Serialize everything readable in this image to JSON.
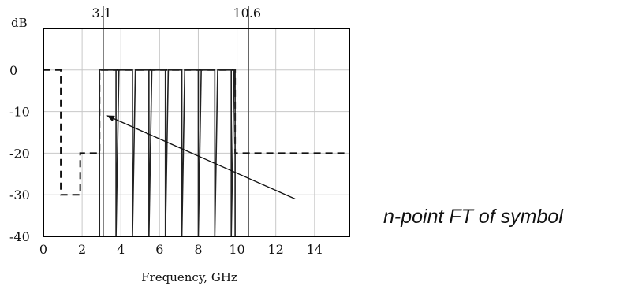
{
  "chart_data": {
    "type": "line",
    "title": "",
    "xlabel": "Frequency, GHz",
    "ylabel": "dB",
    "xlim": [
      0,
      15.8
    ],
    "ylim": [
      -40,
      10
    ],
    "xticks": [
      0,
      2,
      4,
      6,
      8,
      10,
      12,
      14
    ],
    "yticks": [
      0,
      -10,
      -20,
      -30,
      -40
    ],
    "grid": true,
    "markers": [
      {
        "x": 3.1,
        "label": "3.1"
      },
      {
        "x": 10.6,
        "label": "10.6"
      }
    ],
    "annotation": {
      "text": "n-point FT of symbol",
      "arrow_from": [
        13.0,
        -31.0
      ],
      "arrow_to": [
        3.3,
        -11.0
      ]
    },
    "series": [
      {
        "style": "dashed",
        "x": [
          0.0,
          0.9,
          0.9,
          0.9,
          1.9,
          1.9,
          2.9,
          2.9,
          9.9,
          9.9,
          15.8
        ],
        "y": [
          0,
          0,
          0,
          -30,
          -30,
          -20,
          -20,
          0,
          0,
          -20,
          -20
        ]
      },
      {
        "style": "solid",
        "x": [
          2.9,
          2.9,
          3.05,
          3.75,
          3.75,
          3.75,
          3.9,
          4.6,
          4.6,
          4.6,
          4.75,
          5.45,
          5.45,
          5.45,
          5.6,
          6.3,
          6.3,
          6.3,
          6.45,
          7.15,
          7.15,
          7.15,
          7.3,
          8.0,
          8.0,
          8.0,
          8.15,
          8.85,
          8.85,
          8.85,
          9.0,
          9.7,
          9.7,
          9.7,
          9.85,
          9.9,
          9.9
        ],
        "y": [
          -40,
          0,
          0,
          0,
          -40,
          -40,
          0,
          0,
          -40,
          -40,
          0,
          0,
          -40,
          -40,
          0,
          0,
          -40,
          -40,
          0,
          0,
          -40,
          -40,
          0,
          0,
          -40,
          -40,
          0,
          0,
          -40,
          -40,
          0,
          0,
          -40,
          -40,
          0,
          0,
          -40
        ]
      }
    ]
  }
}
